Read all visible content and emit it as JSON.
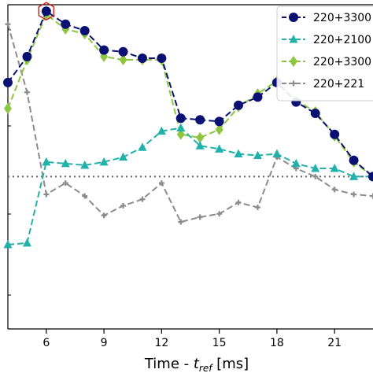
{
  "chart_data": {
    "type": "line",
    "xlabel_main": "Time - ",
    "xlabel_sym": "t",
    "xlabel_sub": "ref",
    "xlabel_unit": " [ms]",
    "xlim": [
      4,
      23
    ],
    "xticks": [
      6,
      9,
      12,
      15,
      18,
      21
    ],
    "ylim": [
      0,
      100
    ],
    "reference_line_y": 47,
    "grid": false,
    "legend_position": "top-right",
    "x": [
      4,
      5,
      6,
      7,
      8,
      9,
      10,
      11,
      12,
      13,
      14,
      15,
      16,
      17,
      18,
      19,
      20,
      21,
      22,
      23
    ],
    "series": [
      {
        "name": "220+3300",
        "color": "#0a1172",
        "marker": "circle",
        "values": [
          76,
          84,
          98,
          94,
          92,
          86,
          85.5,
          83.5,
          83.5,
          65,
          64.5,
          64,
          69,
          71.5,
          76,
          70,
          66.5,
          60,
          52,
          47
        ]
      },
      {
        "name": "220+2100",
        "color": "#20b2aa",
        "marker": "triangle",
        "values": [
          26,
          26.5,
          51.5,
          51,
          50.5,
          51.5,
          53,
          56,
          61,
          62,
          56.5,
          55.5,
          54,
          53.5,
          54,
          51,
          49.5,
          49.5,
          47,
          47
        ]
      },
      {
        "name": "220+3300",
        "color": "#8cc63f",
        "marker": "diamond",
        "values": [
          68,
          83,
          97,
          92.5,
          91,
          84,
          83,
          83,
          83,
          60,
          59,
          61.5,
          68.5,
          72.5,
          76.5,
          70.5,
          67,
          59.5,
          51.5,
          47
        ]
      },
      {
        "name": "220+221",
        "color": "#8c8c8c",
        "marker": "plus",
        "values": [
          94,
          73,
          41.5,
          45,
          41,
          35,
          38,
          40,
          45,
          33,
          34.5,
          35.5,
          39,
          37.5,
          53,
          49.5,
          47,
          43,
          41.5,
          41
        ]
      }
    ],
    "highlight_point": {
      "series": 0,
      "x": 6
    }
  }
}
